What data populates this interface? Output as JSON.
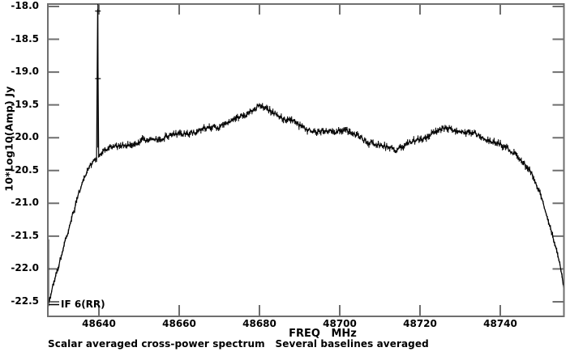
{
  "figure": {
    "background_color": "#ffffff",
    "frame_color": "#6f6f6f",
    "data_color": "#000000",
    "text_color": "#000000"
  },
  "plot": {
    "ylabel": "10*Log10(Amp) Jy",
    "xlabel": "FREQ   MHz",
    "if_label": "IF 6(RR)",
    "caption": "Scalar averaged cross-power spectrum   Several baselines averaged"
  },
  "chart_data": {
    "type": "line",
    "title": "Scalar averaged cross-power spectrum   Several baselines averaged",
    "xlabel": "FREQ MHz",
    "ylabel": "10*Log10(Amp) Jy",
    "xlim": [
      48627.3,
      48756.4
    ],
    "ylim": [
      -22.73,
      -17.97
    ],
    "x_ticks": [
      48640,
      48660,
      48680,
      48700,
      48720,
      48740
    ],
    "y_ticks": [
      -18.0,
      -18.5,
      -19.0,
      -19.5,
      -20.0,
      -20.5,
      -21.0,
      -21.5,
      -22.0,
      -22.5
    ],
    "grid": false,
    "legend": "none",
    "annotations": [
      "IF 6(RR)"
    ],
    "series": [
      {
        "name": "IF 6(RR) scalar-averaged cross-power spectrum",
        "style": "noisy polyline with per-channel error bars",
        "channel_step_mhz": 0.26,
        "noise_db": 0.045,
        "error_bar_db": 0.03,
        "envelope_points": [
          [
            48627.3,
            -22.55
          ],
          [
            48628.5,
            -22.28
          ],
          [
            48630,
            -21.95
          ],
          [
            48631.5,
            -21.6
          ],
          [
            48633,
            -21.25
          ],
          [
            48634.5,
            -20.95
          ],
          [
            48636,
            -20.68
          ],
          [
            48637.5,
            -20.47
          ],
          [
            48639,
            -20.32
          ],
          [
            48641,
            -20.2
          ],
          [
            48643,
            -20.16
          ],
          [
            48646,
            -20.12
          ],
          [
            48650,
            -20.07
          ],
          [
            48654,
            -20.02
          ],
          [
            48658,
            -19.97
          ],
          [
            48662,
            -19.93
          ],
          [
            48666,
            -19.88
          ],
          [
            48670,
            -19.82
          ],
          [
            48673,
            -19.74
          ],
          [
            48676,
            -19.65
          ],
          [
            48678,
            -19.58
          ],
          [
            48680,
            -19.53
          ],
          [
            48682,
            -19.57
          ],
          [
            48684,
            -19.63
          ],
          [
            48686,
            -19.7
          ],
          [
            48689,
            -19.78
          ],
          [
            48692,
            -19.86
          ],
          [
            48694.5,
            -19.93
          ],
          [
            48696.5,
            -19.92
          ],
          [
            48699,
            -19.88
          ],
          [
            48701,
            -19.89
          ],
          [
            48703,
            -19.94
          ],
          [
            48706,
            -20.02
          ],
          [
            48709,
            -20.1
          ],
          [
            48712,
            -20.16
          ],
          [
            48714,
            -20.17
          ],
          [
            48716,
            -20.13
          ],
          [
            48718,
            -20.08
          ],
          [
            48720,
            -20.02
          ],
          [
            48722,
            -19.96
          ],
          [
            48724.5,
            -19.9
          ],
          [
            48727,
            -19.86
          ],
          [
            48729,
            -19.87
          ],
          [
            48731,
            -19.9
          ],
          [
            48734,
            -19.96
          ],
          [
            48737,
            -20.04
          ],
          [
            48740,
            -20.12
          ],
          [
            48742,
            -20.17
          ],
          [
            48744,
            -20.25
          ],
          [
            48746,
            -20.4
          ],
          [
            48748,
            -20.6
          ],
          [
            48750,
            -20.85
          ],
          [
            48751.5,
            -21.15
          ],
          [
            48753,
            -21.5
          ],
          [
            48754.5,
            -21.85
          ],
          [
            48755.5,
            -22.15
          ],
          [
            48756.2,
            -22.45
          ]
        ],
        "spike": {
          "freq_mhz": 48639.75,
          "peak_db": -18.07,
          "secondary_db": -19.1,
          "base_db": -20.15,
          "clipped_at_top": true
        },
        "edge_error_bars": [
          {
            "freq_mhz": 48627.45,
            "from_db": -22.55,
            "to_db": -21.55
          },
          {
            "freq_mhz": 48756.1,
            "from_db": -22.5,
            "to_db": -20.95
          }
        ]
      }
    ]
  }
}
